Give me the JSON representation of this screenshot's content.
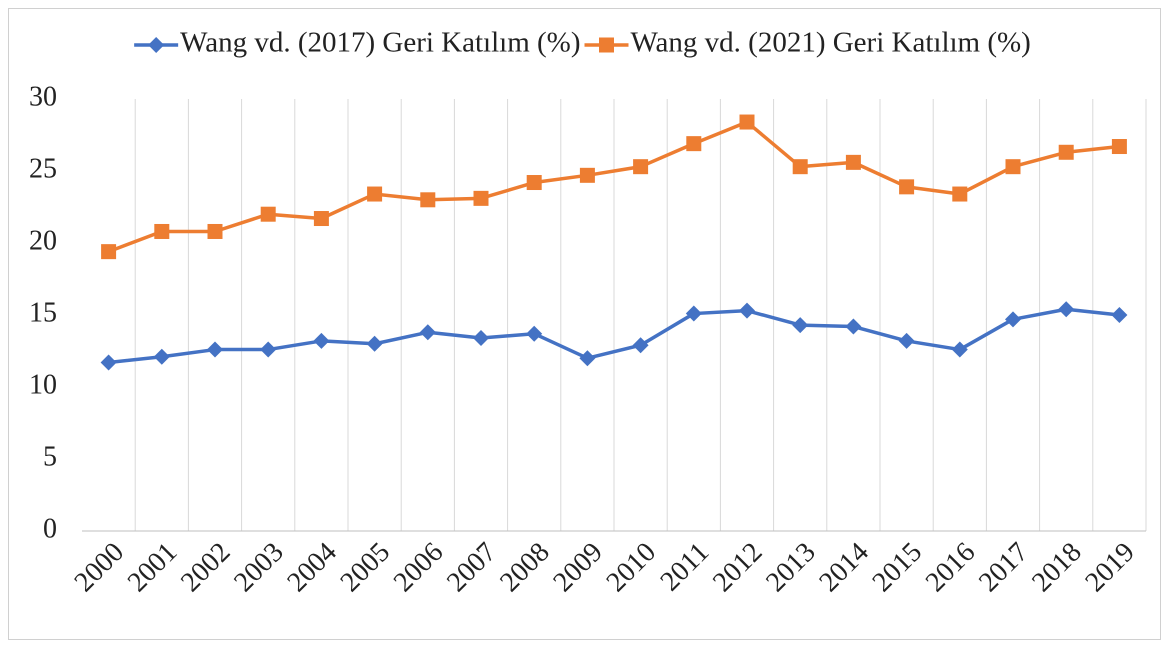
{
  "chart_data": {
    "type": "line",
    "categories": [
      "2000",
      "2001",
      "2002",
      "2003",
      "2004",
      "2005",
      "2006",
      "2007",
      "2008",
      "2009",
      "2010",
      "2011",
      "2012",
      "2013",
      "2014",
      "2015",
      "2016",
      "2017",
      "2018",
      "2019"
    ],
    "series": [
      {
        "name": "Wang vd. (2017) Geri Katılım (%)",
        "color": "#4472c4",
        "marker": "diamond",
        "values": [
          11.7,
          12.1,
          12.6,
          12.6,
          13.2,
          13.0,
          13.8,
          13.4,
          13.7,
          12.0,
          12.9,
          15.1,
          15.3,
          14.3,
          14.2,
          13.2,
          12.6,
          14.7,
          15.4,
          15.0
        ]
      },
      {
        "name": "Wang vd. (2021) Geri Katılım (%)",
        "color": "#ed7d31",
        "marker": "square",
        "values": [
          19.4,
          20.8,
          20.8,
          22.0,
          21.7,
          23.4,
          23.0,
          23.1,
          24.2,
          24.7,
          25.3,
          26.9,
          28.4,
          25.3,
          25.6,
          23.9,
          23.4,
          25.3,
          26.3,
          26.7
        ]
      }
    ],
    "ylim": [
      0,
      30
    ],
    "yticks": [
      0,
      5,
      10,
      15,
      20,
      25,
      30
    ],
    "grid": "x",
    "legend": "top"
  }
}
